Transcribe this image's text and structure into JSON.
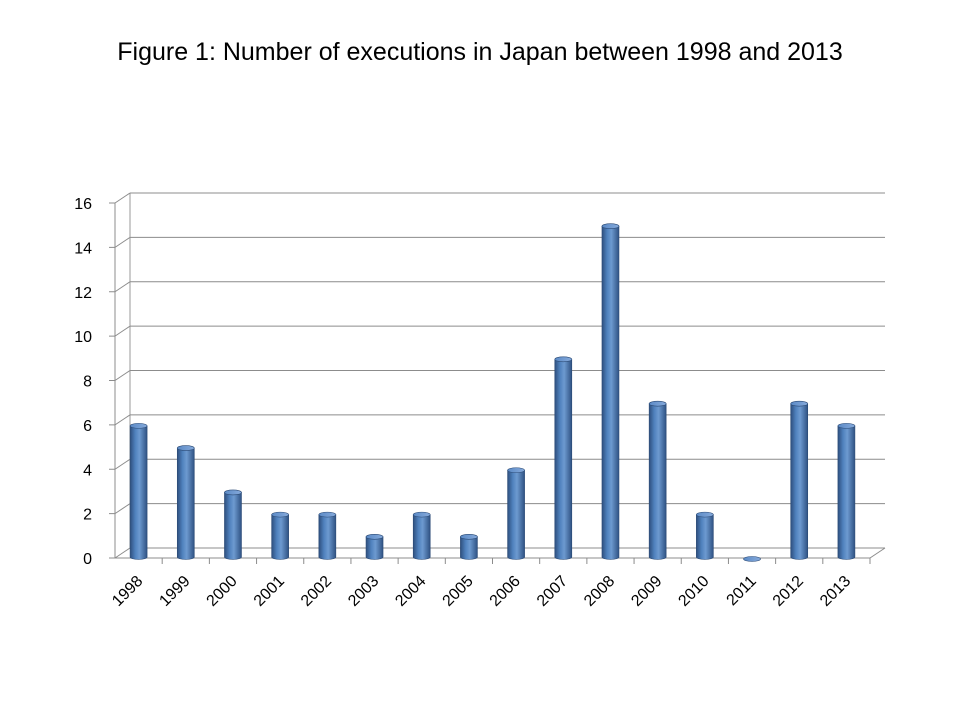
{
  "page": {
    "title": "Figure 1: Number of executions in Japan between 1998 and 2013"
  },
  "chart_data": {
    "type": "bar",
    "title": "",
    "xlabel": "",
    "ylabel": "",
    "categories": [
      "1998",
      "1999",
      "2000",
      "2001",
      "2002",
      "2003",
      "2004",
      "2005",
      "2006",
      "2007",
      "2008",
      "2009",
      "2010",
      "2011",
      "2012",
      "2013"
    ],
    "values": [
      6,
      5,
      3,
      2,
      2,
      1,
      2,
      1,
      4,
      9,
      15,
      7,
      2,
      0,
      7,
      6
    ],
    "ylim": [
      0,
      16
    ],
    "yticks": [
      0,
      2,
      4,
      6,
      8,
      10,
      12,
      14,
      16
    ],
    "grid": true,
    "legend": "none",
    "bar_color": "#4F81BD"
  }
}
